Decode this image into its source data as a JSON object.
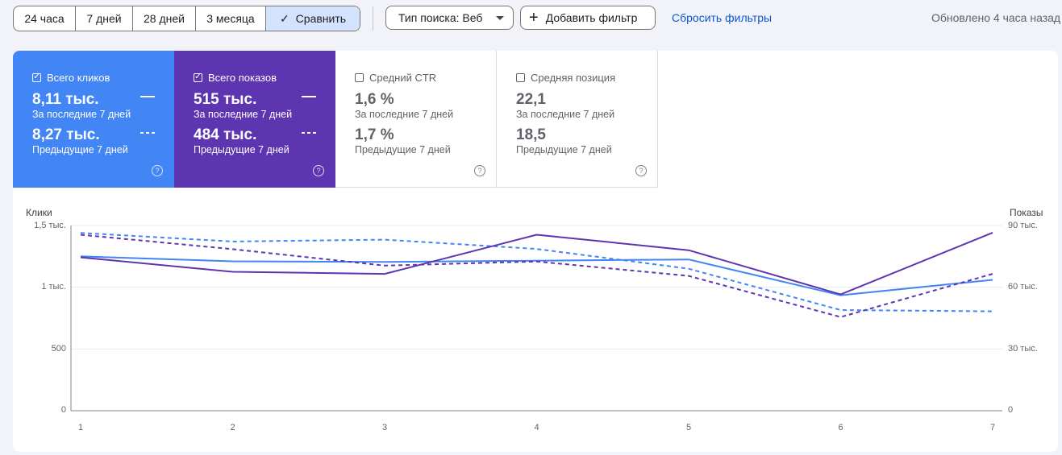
{
  "toolbar": {
    "range_options": [
      "24 часа",
      "7 дней",
      "28 дней",
      "3 месяца"
    ],
    "compare_label": "Сравнить",
    "search_type_label": "Тип поиска: Веб",
    "add_filter_label": "Добавить фильтр",
    "reset_filters_label": "Сбросить фильтры",
    "updated_text": "Обновлено 4 часа назад"
  },
  "metrics": [
    {
      "label": "Всего кликов",
      "checked": true,
      "current": "8,11 тыс.",
      "current_caption": "За последние 7 дней",
      "previous": "8,27 тыс.",
      "previous_caption": "Предыдущие 7 дней",
      "color": "#4285f4"
    },
    {
      "label": "Всего показов",
      "checked": true,
      "current": "515 тыс.",
      "current_caption": "За последние 7 дней",
      "previous": "484 тыс.",
      "previous_caption": "Предыдущие 7 дней",
      "color": "#5e35b1"
    },
    {
      "label": "Средний CTR",
      "checked": false,
      "current": "1,6 %",
      "current_caption": "За последние 7 дней",
      "previous": "1,7 %",
      "previous_caption": "Предыдущие 7 дней",
      "color": "#ffffff"
    },
    {
      "label": "Средняя позиция",
      "checked": false,
      "current": "22,1",
      "current_caption": "За последние 7 дней",
      "previous": "18,5",
      "previous_caption": "Предыдущие 7 дней",
      "color": "#ffffff"
    }
  ],
  "chart_data": {
    "type": "line",
    "left_axis_label": "Клики",
    "right_axis_label": "Показы",
    "x": [
      1,
      2,
      3,
      4,
      5,
      6,
      7
    ],
    "left_ticks": [
      "1,5 тыс.",
      "1 тыс.",
      "500",
      "0"
    ],
    "right_ticks": [
      "90 тыс.",
      "60 тыс.",
      "30 тыс.",
      "0"
    ],
    "left_ylim": [
      0,
      1500
    ],
    "right_ylim": [
      0,
      90000
    ],
    "grid": true,
    "series": [
      {
        "axis": "left",
        "style": "solid",
        "color": "#4285f4",
        "values": [
          1250,
          1210,
          1205,
          1215,
          1225,
          935,
          1060
        ]
      },
      {
        "axis": "left",
        "style": "dashed",
        "color": "#4285f4",
        "values": [
          1440,
          1370,
          1385,
          1310,
          1150,
          815,
          805
        ]
      },
      {
        "axis": "right",
        "style": "solid",
        "color": "#5e35b1",
        "values": [
          74500,
          67500,
          66500,
          85500,
          78000,
          56500,
          86500
        ]
      },
      {
        "axis": "right",
        "style": "dashed",
        "color": "#5e35b1",
        "values": [
          85500,
          78500,
          70500,
          72500,
          65500,
          45500,
          66500
        ]
      }
    ]
  }
}
